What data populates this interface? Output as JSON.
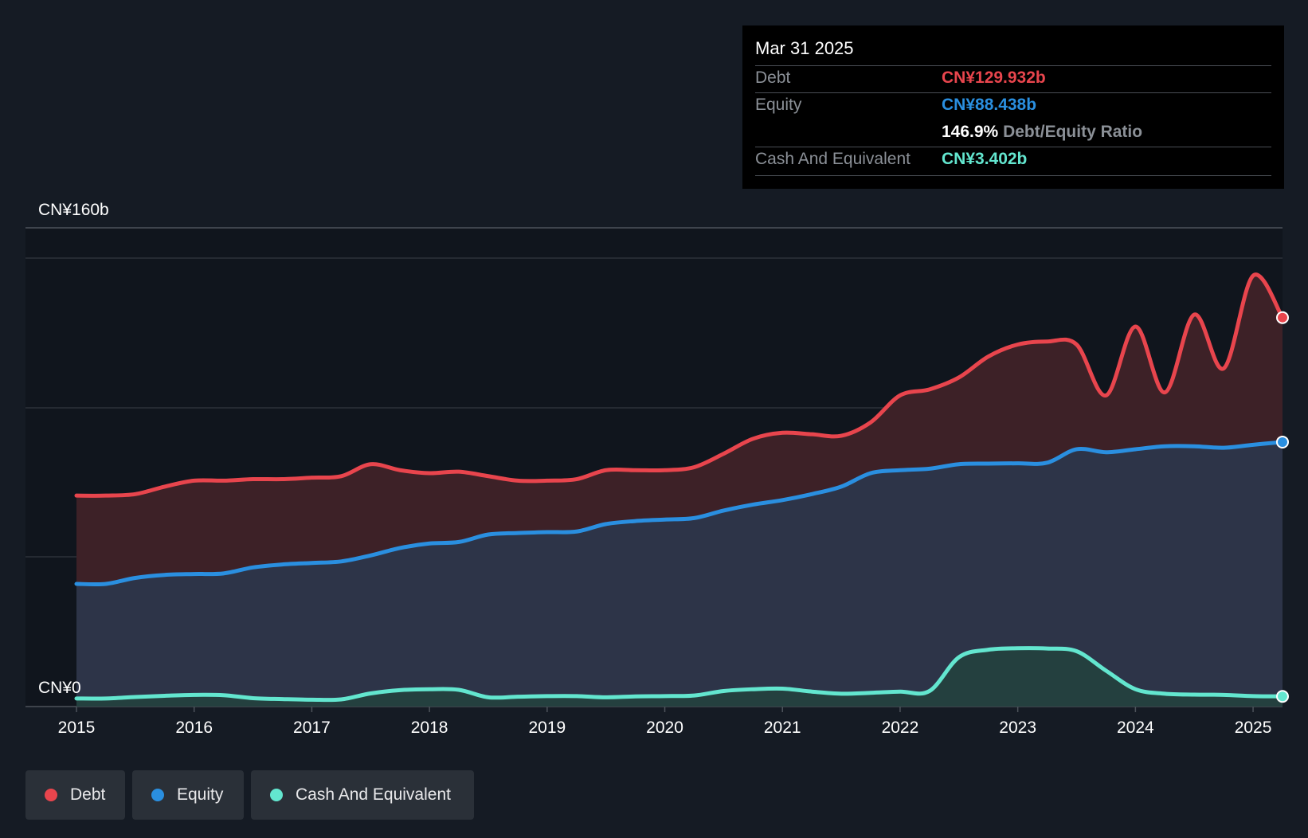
{
  "tooltip": {
    "date": "Mar 31 2025",
    "debt_label": "Debt",
    "debt_value": "CN¥129.932b",
    "equity_label": "Equity",
    "equity_value": "CN¥88.438b",
    "ratio_value": "146.9%",
    "ratio_label": "Debt/Equity Ratio",
    "cash_label": "Cash And Equivalent",
    "cash_value": "CN¥3.402b"
  },
  "legend": {
    "debt": "Debt",
    "equity": "Equity",
    "cash": "Cash And Equivalent"
  },
  "colors": {
    "debt": "#e8454d",
    "equity": "#2a8fe0",
    "cash": "#63e6cf",
    "background": "#151b24"
  },
  "chart_data": {
    "type": "area",
    "title": "",
    "xlabel": "",
    "ylabel": "",
    "y_top_label": "CN¥160b",
    "y_bottom_label": "CN¥0",
    "ylim": [
      0,
      160
    ],
    "xlim": [
      2015.0,
      2025.25
    ],
    "x_ticks": [
      "2015",
      "2016",
      "2017",
      "2018",
      "2019",
      "2020",
      "2021",
      "2022",
      "2023",
      "2024",
      "2025"
    ],
    "series": [
      {
        "name": "Debt",
        "x": [
          2015.0,
          2015.25,
          2015.5,
          2015.75,
          2016.0,
          2016.25,
          2016.5,
          2016.75,
          2017.0,
          2017.25,
          2017.5,
          2017.75,
          2018.0,
          2018.25,
          2018.5,
          2018.75,
          2019.0,
          2019.25,
          2019.5,
          2019.75,
          2020.0,
          2020.25,
          2020.5,
          2020.75,
          2021.0,
          2021.25,
          2021.5,
          2021.75,
          2022.0,
          2022.25,
          2022.5,
          2022.75,
          2023.0,
          2023.25,
          2023.5,
          2023.75,
          2024.0,
          2024.25,
          2024.5,
          2024.75,
          2025.0,
          2025.25
        ],
        "values": [
          70.5,
          70.5,
          71,
          73.5,
          75.5,
          75.5,
          76,
          76,
          76.5,
          77,
          81,
          79,
          78,
          78.5,
          77,
          75.5,
          75.5,
          76,
          79,
          79,
          79,
          80,
          84.5,
          89.5,
          91.5,
          91,
          90.5,
          95,
          104,
          106,
          110,
          117,
          121,
          122,
          121,
          104,
          127,
          105,
          131,
          113,
          144,
          130
        ]
      },
      {
        "name": "Equity",
        "x": [
          2015.0,
          2015.25,
          2015.5,
          2015.75,
          2016.0,
          2016.25,
          2016.5,
          2016.75,
          2017.0,
          2017.25,
          2017.5,
          2017.75,
          2018.0,
          2018.25,
          2018.5,
          2018.75,
          2019.0,
          2019.25,
          2019.5,
          2019.75,
          2020.0,
          2020.25,
          2020.5,
          2020.75,
          2021.0,
          2021.25,
          2021.5,
          2021.75,
          2022.0,
          2022.25,
          2022.5,
          2022.75,
          2023.0,
          2023.25,
          2023.5,
          2023.75,
          2024.0,
          2024.25,
          2024.5,
          2024.75,
          2025.0,
          2025.25
        ],
        "values": [
          41,
          41,
          43,
          44,
          44.3,
          44.5,
          46.5,
          47.5,
          48,
          48.5,
          50.5,
          53,
          54.5,
          55,
          57.5,
          58,
          58.3,
          58.5,
          61,
          62,
          62.5,
          63,
          65.5,
          67.5,
          69,
          71,
          73.5,
          78,
          79,
          79.5,
          81,
          81.2,
          81.3,
          81.5,
          86,
          85,
          86,
          87,
          87,
          86.5,
          87.5,
          88.4
        ]
      },
      {
        "name": "Cash And Equivalent",
        "x": [
          2015.0,
          2015.25,
          2015.5,
          2015.75,
          2016.0,
          2016.25,
          2016.5,
          2016.75,
          2017.0,
          2017.25,
          2017.5,
          2017.75,
          2018.0,
          2018.25,
          2018.5,
          2018.75,
          2019.0,
          2019.25,
          2019.5,
          2019.75,
          2020.0,
          2020.25,
          2020.5,
          2020.75,
          2021.0,
          2021.25,
          2021.5,
          2021.75,
          2022.0,
          2022.25,
          2022.5,
          2022.75,
          2023.0,
          2023.25,
          2023.5,
          2023.75,
          2024.0,
          2024.25,
          2024.5,
          2024.75,
          2025.0,
          2025.25
        ],
        "values": [
          2.7,
          2.7,
          3.2,
          3.6,
          3.9,
          3.8,
          2.8,
          2.5,
          2.3,
          2.4,
          4.4,
          5.5,
          5.8,
          5.6,
          3.1,
          3.3,
          3.5,
          3.5,
          3.1,
          3.4,
          3.5,
          3.7,
          5.2,
          5.8,
          6.0,
          5.0,
          4.3,
          4.6,
          5.0,
          5.2,
          16.5,
          19.0,
          19.5,
          19.4,
          18.5,
          12.0,
          5.8,
          4.3,
          4.0,
          3.9,
          3.5,
          3.4
        ]
      }
    ]
  }
}
